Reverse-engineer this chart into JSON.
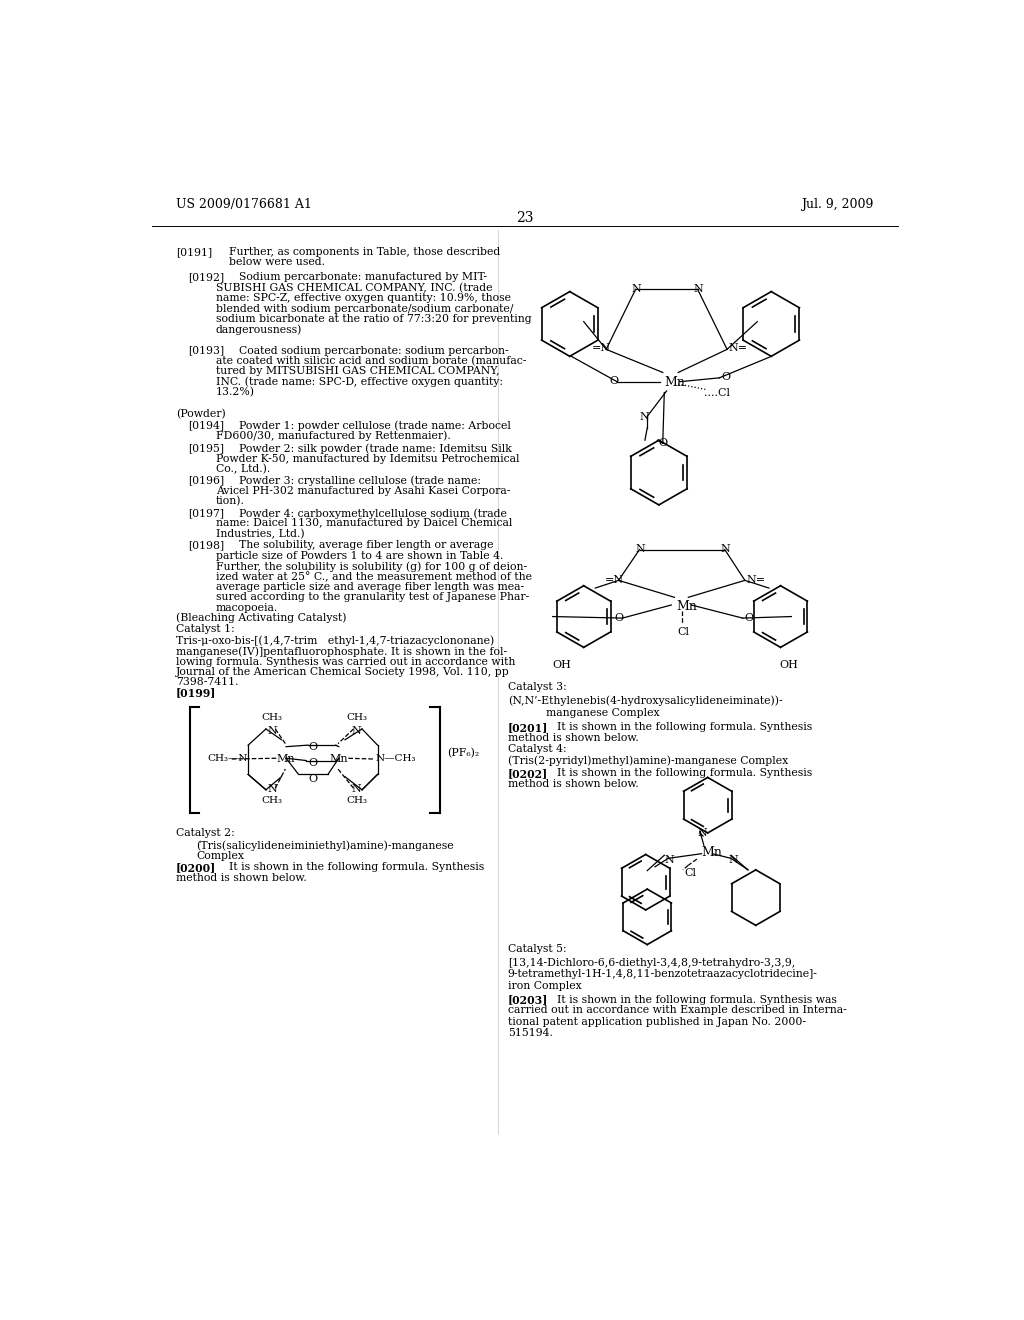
{
  "bg_color": "#ffffff",
  "header_left": "US 2009/0176681 A1",
  "header_right": "Jul. 9, 2009",
  "page_number": "23",
  "body_fs": 7.8,
  "header_fs": 9.0
}
